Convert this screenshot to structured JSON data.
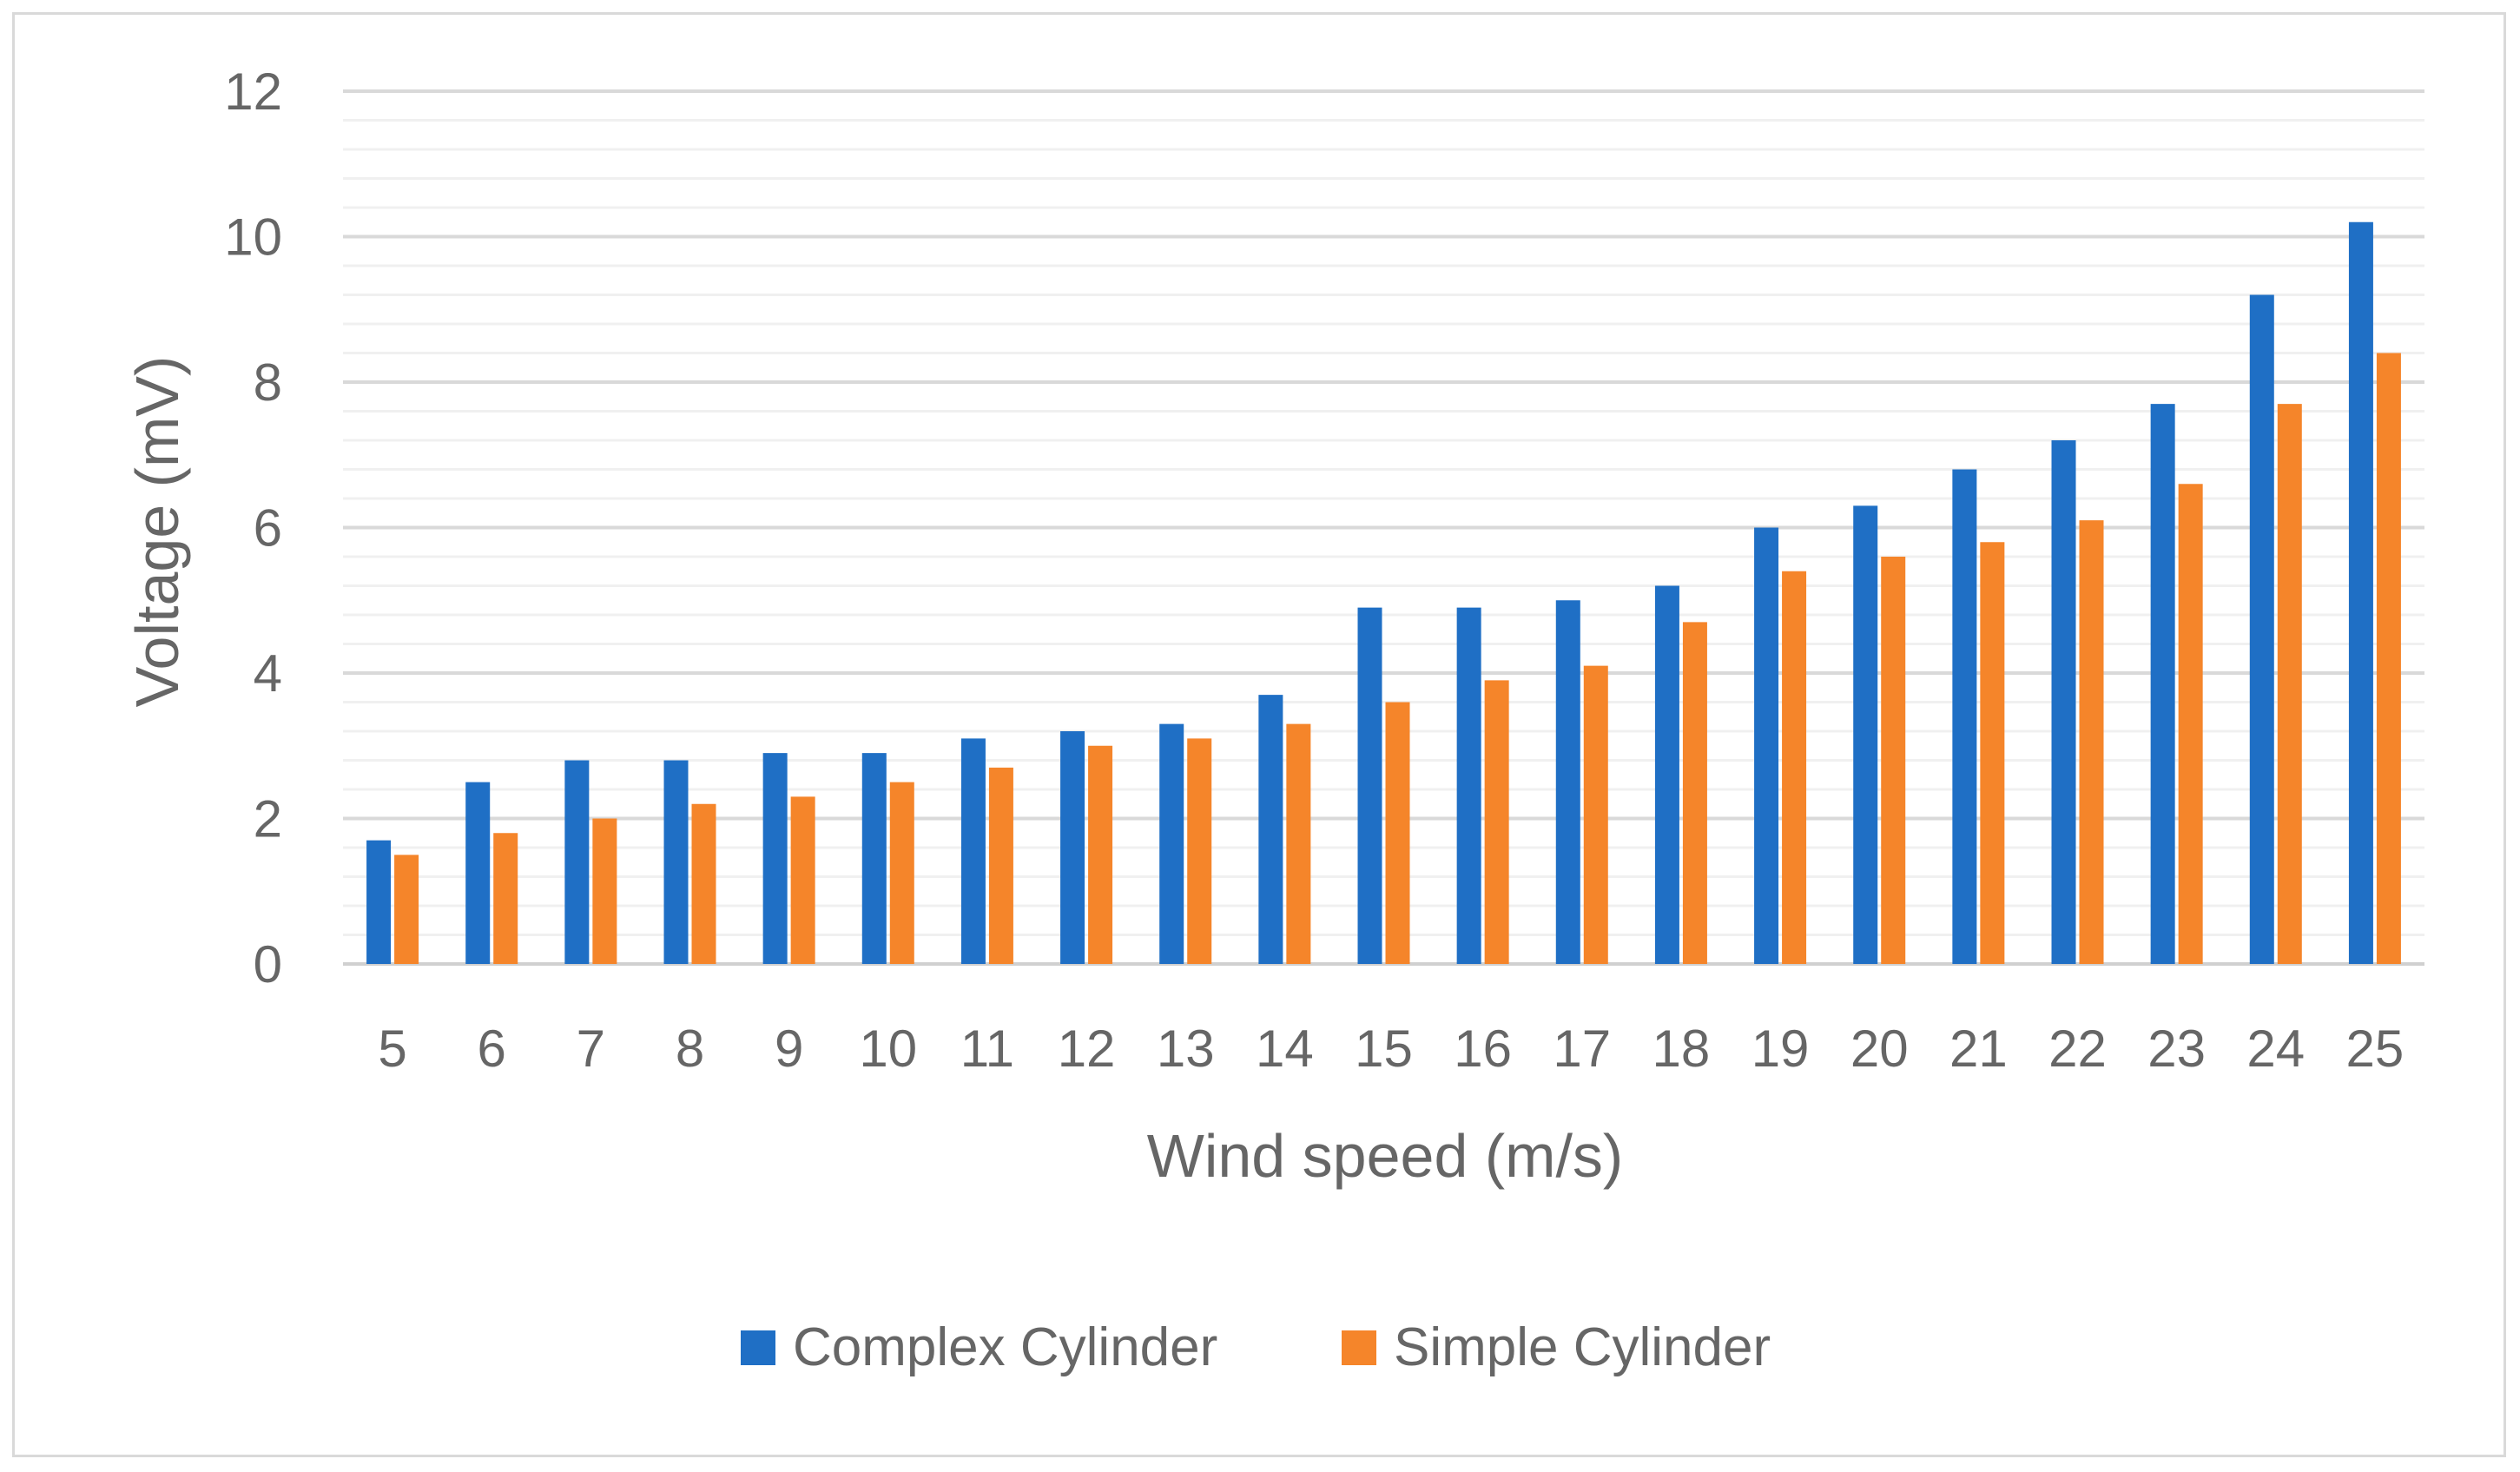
{
  "chart_data": {
    "type": "bar",
    "title": "",
    "xlabel": "Wind speed (m/s)",
    "ylabel": "Voltage (mV)",
    "ylim": [
      0,
      12
    ],
    "yticks": [
      "0",
      "2",
      "4",
      "6",
      "8",
      "10",
      "12"
    ],
    "grid": true,
    "legend_position": "bottom",
    "categories": [
      "5",
      "6",
      "7",
      "8",
      "9",
      "10",
      "11",
      "12",
      "13",
      "14",
      "15",
      "16",
      "17",
      "18",
      "19",
      "20",
      "21",
      "22",
      "23",
      "24",
      "25"
    ],
    "series": [
      {
        "name": "Complex Cylinder",
        "color": "#1f6fc5",
        "values": [
          1.7,
          2.5,
          2.8,
          2.8,
          2.9,
          2.9,
          3.1,
          3.2,
          3.3,
          3.7,
          4.9,
          4.9,
          5.0,
          5.2,
          6.0,
          6.3,
          6.8,
          7.2,
          7.7,
          9.2,
          10.2
        ]
      },
      {
        "name": "Simple Cylinder",
        "color": "#f5852a",
        "values": [
          1.5,
          1.8,
          2.0,
          2.2,
          2.3,
          2.5,
          2.7,
          3.0,
          3.1,
          3.3,
          3.6,
          3.9,
          4.1,
          4.7,
          5.4,
          5.6,
          5.8,
          6.1,
          6.6,
          7.7,
          8.4
        ]
      }
    ]
  }
}
